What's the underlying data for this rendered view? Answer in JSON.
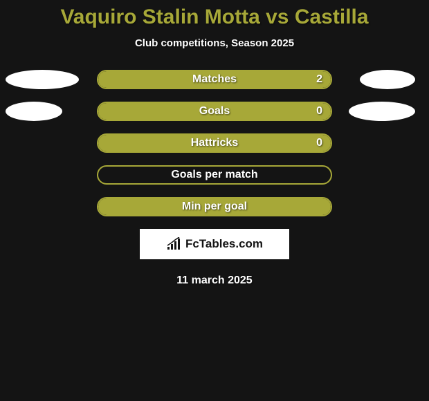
{
  "title": "Vaquiro Stalin Motta vs Castilla",
  "subtitle": "Club competitions, Season 2025",
  "colors": {
    "accent": "#a7a838",
    "background": "#141414",
    "text": "#ffffff",
    "blob": "#ffffff"
  },
  "stats": [
    {
      "label": "Matches",
      "value": "2",
      "fill_pct": 100,
      "left_blob_width": 106,
      "right_blob_width": 80,
      "show_value": true
    },
    {
      "label": "Goals",
      "value": "0",
      "fill_pct": 100,
      "left_blob_width": 82,
      "right_blob_width": 96,
      "show_value": true
    },
    {
      "label": "Hattricks",
      "value": "0",
      "fill_pct": 100,
      "left_blob_width": 0,
      "right_blob_width": 0,
      "show_value": true
    },
    {
      "label": "Goals per match",
      "value": "",
      "fill_pct": 0,
      "left_blob_width": 0,
      "right_blob_width": 0,
      "show_value": false
    },
    {
      "label": "Min per goal",
      "value": "",
      "fill_pct": 100,
      "left_blob_width": 0,
      "right_blob_width": 0,
      "show_value": false
    }
  ],
  "branding": "FcTables.com",
  "date": "11 march 2025"
}
